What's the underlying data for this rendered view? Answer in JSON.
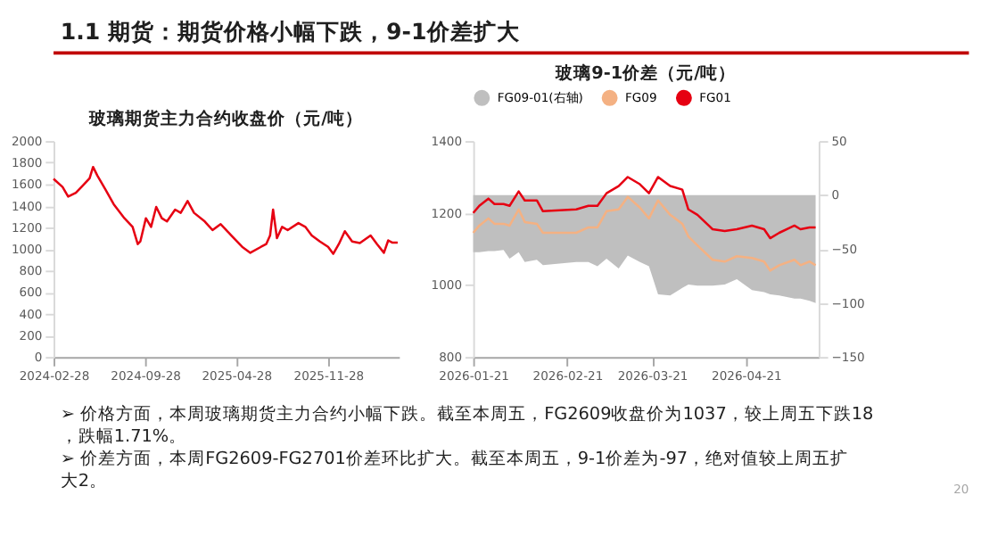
{
  "chart_data": [
    {
      "type": "line",
      "title": "玻璃期货主力合约收盘价（元/吨）",
      "annotations": [
        "1.1 期货：期货价格小幅下跌，9-1价差扩大",
        "➢ 价格方面，本周玻璃期货主力合约小幅下跌。截至本周五，FG2609收盘价为1037，较上周五下跌18，跌幅1.71%。",
        "➢ 价差方面，本周FG2609-FG2701价差环比扩大。截至本周五，9-1价差为-97，绝对值较上周五扩大2。",
        "20"
      ],
      "x": [
        "2024-02-28",
        "2024-03-20",
        "2024-04-02",
        "2024-04-20",
        "2024-05-03",
        "2024-05-22",
        "2024-05-30",
        "2024-06-09",
        "2024-06-28",
        "2024-07-17",
        "2024-08-11",
        "2024-08-30",
        "2024-09-11",
        "2024-09-17",
        "2024-09-30",
        "2024-10-12",
        "2024-10-24",
        "2024-11-06",
        "2024-11-18",
        "2024-12-07",
        "2024-12-20",
        "2025-01-05",
        "2025-01-20",
        "2025-02-14",
        "2025-03-04",
        "2025-03-23",
        "2025-04-17",
        "2025-05-12",
        "2025-05-31",
        "2025-06-25",
        "2025-07-07",
        "2025-07-16",
        "2025-07-23",
        "2025-08-01",
        "2025-08-13",
        "2025-08-26",
        "2025-09-20",
        "2025-10-06",
        "2025-10-21",
        "2025-11-09",
        "2025-11-28",
        "2025-12-10",
        "2025-12-23",
        "2026-01-06",
        "2026-01-23",
        "2026-02-10",
        "2026-03-07",
        "2026-03-22",
        "2026-04-07",
        "2026-04-17",
        "2026-04-26",
        "2026-05-09"
      ],
      "series": [
        {
          "color": "#e60012",
          "values": [
            1650,
            1575,
            1485,
            1520,
            1575,
            1655,
            1760,
            1680,
            1550,
            1415,
            1285,
            1205,
            1045,
            1070,
            1285,
            1205,
            1390,
            1285,
            1255,
            1365,
            1335,
            1445,
            1335,
            1255,
            1175,
            1230,
            1125,
            1020,
            965,
            1020,
            1045,
            1125,
            1365,
            1100,
            1205,
            1175,
            1240,
            1205,
            1125,
            1070,
            1020,
            955,
            1045,
            1165,
            1070,
            1055,
            1125,
            1045,
            965,
            1080,
            1060,
            1060
          ]
        }
      ],
      "xlim": [
        "2024-02-28",
        "2026-05-12"
      ],
      "xticks": [
        "2024-02-28",
        "2024-09-28",
        "2025-04-28",
        "2025-11-28"
      ],
      "ylim": [
        0,
        2000
      ],
      "yticks": [
        0,
        200,
        400,
        600,
        800,
        1000,
        1200,
        1400,
        1600,
        1800,
        2000
      ],
      "grid": false,
      "legend": false
    },
    {
      "type": "line",
      "title": "玻璃9-1价差（元/吨）",
      "x": [
        "2026-01-21",
        "2026-01-23",
        "2026-01-26",
        "2026-01-28",
        "2026-01-31",
        "2026-02-02",
        "2026-02-05",
        "2026-02-07",
        "2026-02-11",
        "2026-02-13",
        "2026-02-24",
        "2026-02-28",
        "2026-03-03",
        "2026-03-06",
        "2026-03-10",
        "2026-03-13",
        "2026-03-17",
        "2026-03-20",
        "2026-03-23",
        "2026-03-27",
        "2026-03-31",
        "2026-04-02",
        "2026-04-05",
        "2026-04-10",
        "2026-04-14",
        "2026-04-18",
        "2026-04-23",
        "2026-04-27",
        "2026-04-29",
        "2026-05-02",
        "2026-05-07",
        "2026-05-09",
        "2026-05-12",
        "2026-05-14"
      ],
      "series": [
        {
          "name": "FG09-01(右轴)",
          "type": "area",
          "axis": "y2",
          "color": "#bfbfbf",
          "values": [
            -53,
            -53,
            -52,
            -52,
            -51,
            -59,
            -53,
            -62,
            -60,
            -65,
            -62,
            -62,
            -66,
            -59,
            -68,
            -56,
            -62,
            -66,
            -92,
            -93,
            -86,
            -83,
            -84,
            -84,
            -83,
            -78,
            -88,
            -90,
            -92,
            -93,
            -96,
            -96,
            -98,
            -100
          ]
        },
        {
          "name": "FG09",
          "color": "#f4b183",
          "values": [
            1145,
            1165,
            1185,
            1170,
            1170,
            1165,
            1210,
            1175,
            1170,
            1145,
            1145,
            1160,
            1160,
            1205,
            1210,
            1245,
            1215,
            1185,
            1235,
            1195,
            1170,
            1135,
            1110,
            1070,
            1065,
            1080,
            1075,
            1065,
            1040,
            1055,
            1070,
            1055,
            1065,
            1055
          ]
        },
        {
          "name": "FG01",
          "color": "#e60012",
          "values": [
            1200,
            1220,
            1240,
            1225,
            1225,
            1220,
            1260,
            1235,
            1235,
            1205,
            1210,
            1220,
            1220,
            1255,
            1275,
            1300,
            1280,
            1255,
            1300,
            1275,
            1265,
            1210,
            1195,
            1155,
            1150,
            1155,
            1165,
            1155,
            1130,
            1145,
            1165,
            1155,
            1160,
            1160
          ]
        }
      ],
      "xlim": [
        "2026-01-21",
        "2026-05-15"
      ],
      "xticks": [
        "2026-01-21",
        "2026-02-21",
        "2026-03-21",
        "2026-04-21"
      ],
      "ylim": [
        800,
        1400
      ],
      "yticks": [
        800,
        1000,
        1200,
        1400
      ],
      "y2lim": [
        -150,
        50
      ],
      "y2ticks": [
        -150,
        -100,
        -50,
        0,
        50
      ],
      "grid": false,
      "legend": "top"
    }
  ]
}
